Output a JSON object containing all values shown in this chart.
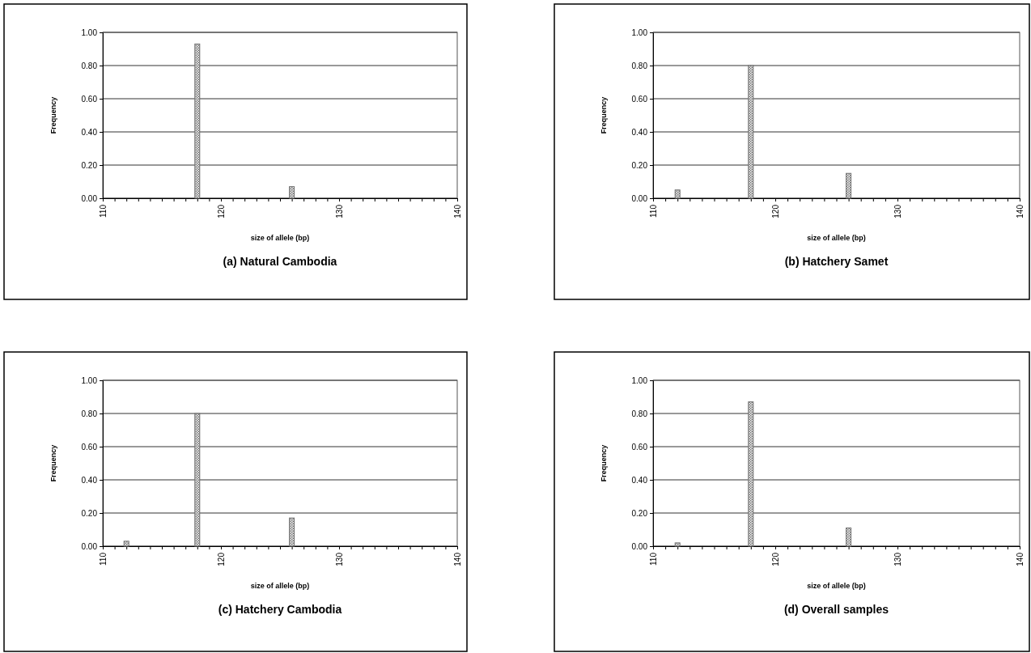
{
  "chart_data": [
    {
      "type": "bar",
      "title": "(a) Natural Cambodia",
      "xlabel": "size of allele (bp)",
      "ylabel": "Frequency",
      "x": [
        118,
        126
      ],
      "values": [
        0.93,
        0.07
      ],
      "color": "#6e6e6e",
      "xlim": [
        110,
        140
      ],
      "ylim": [
        0,
        1
      ],
      "xticks": [
        110,
        {
          "value": 111,
          "label": null
        },
        {
          "value": 112,
          "label": null
        },
        {
          "value": 113,
          "label": null
        },
        {
          "value": 114,
          "label": null
        },
        {
          "value": 115,
          "label": null
        },
        {
          "value": 116,
          "label": null
        },
        {
          "value": 117,
          "label": null
        },
        {
          "value": 118,
          "label": null
        },
        {
          "value": 119,
          "label": null
        },
        120,
        {
          "value": 121,
          "label": null
        },
        {
          "value": 122,
          "label": null
        },
        {
          "value": 123,
          "label": null
        },
        {
          "value": 124,
          "label": null
        },
        {
          "value": 125,
          "label": null
        },
        {
          "value": 126,
          "label": null
        },
        {
          "value": 127,
          "label": null
        },
        {
          "value": 128,
          "label": null
        },
        {
          "value": 129,
          "label": null
        },
        130,
        {
          "value": 131,
          "label": null
        },
        {
          "value": 132,
          "label": null
        },
        {
          "value": 133,
          "label": null
        },
        {
          "value": 134,
          "label": null
        },
        {
          "value": 135,
          "label": null
        },
        {
          "value": 136,
          "label": null
        },
        {
          "value": 137,
          "label": null
        },
        {
          "value": 138,
          "label": null
        },
        {
          "value": 139,
          "label": null
        },
        140
      ],
      "yticks": [
        {
          "value": 0,
          "label": "0.00"
        },
        {
          "value": 0.2,
          "label": "0.20"
        },
        {
          "value": 0.4,
          "label": "0.40"
        },
        {
          "value": 0.6,
          "label": "0.60"
        },
        {
          "value": 0.8,
          "label": "0.80"
        },
        {
          "value": 1,
          "label": "1.00"
        }
      ],
      "grid": "y"
    },
    {
      "type": "bar",
      "title": "(b) Hatchery Samet",
      "xlabel": "size of allele (bp)",
      "ylabel": "Frequency",
      "x": [
        112,
        118,
        126
      ],
      "values": [
        0.05,
        0.8,
        0.15
      ],
      "color": "#6e6e6e",
      "xlim": [
        110,
        140
      ],
      "ylim": [
        0,
        1
      ],
      "xticks": [
        110,
        {
          "value": 111,
          "label": null
        },
        {
          "value": 112,
          "label": null
        },
        {
          "value": 113,
          "label": null
        },
        {
          "value": 114,
          "label": null
        },
        {
          "value": 115,
          "label": null
        },
        {
          "value": 116,
          "label": null
        },
        {
          "value": 117,
          "label": null
        },
        {
          "value": 118,
          "label": null
        },
        {
          "value": 119,
          "label": null
        },
        120,
        {
          "value": 121,
          "label": null
        },
        {
          "value": 122,
          "label": null
        },
        {
          "value": 123,
          "label": null
        },
        {
          "value": 124,
          "label": null
        },
        {
          "value": 125,
          "label": null
        },
        {
          "value": 126,
          "label": null
        },
        {
          "value": 127,
          "label": null
        },
        {
          "value": 128,
          "label": null
        },
        {
          "value": 129,
          "label": null
        },
        130,
        {
          "value": 131,
          "label": null
        },
        {
          "value": 132,
          "label": null
        },
        {
          "value": 133,
          "label": null
        },
        {
          "value": 134,
          "label": null
        },
        {
          "value": 135,
          "label": null
        },
        {
          "value": 136,
          "label": null
        },
        {
          "value": 137,
          "label": null
        },
        {
          "value": 138,
          "label": null
        },
        {
          "value": 139,
          "label": null
        },
        140
      ],
      "yticks": [
        {
          "value": 0,
          "label": "0.00"
        },
        {
          "value": 0.2,
          "label": "0.20"
        },
        {
          "value": 0.4,
          "label": "0.40"
        },
        {
          "value": 0.6,
          "label": "0.60"
        },
        {
          "value": 0.8,
          "label": "0.80"
        },
        {
          "value": 1,
          "label": "1.00"
        }
      ],
      "grid": "y"
    },
    {
      "type": "bar",
      "title": "(c) Hatchery Cambodia",
      "xlabel": "size of allele (bp)",
      "ylabel": "Frequency",
      "x": [
        112,
        118,
        126
      ],
      "values": [
        0.03,
        0.8,
        0.17
      ],
      "color": "#6e6e6e",
      "xlim": [
        110,
        140
      ],
      "ylim": [
        0,
        1
      ],
      "xticks": [
        110,
        {
          "value": 111,
          "label": null
        },
        {
          "value": 112,
          "label": null
        },
        {
          "value": 113,
          "label": null
        },
        {
          "value": 114,
          "label": null
        },
        {
          "value": 115,
          "label": null
        },
        {
          "value": 116,
          "label": null
        },
        {
          "value": 117,
          "label": null
        },
        {
          "value": 118,
          "label": null
        },
        {
          "value": 119,
          "label": null
        },
        120,
        {
          "value": 121,
          "label": null
        },
        {
          "value": 122,
          "label": null
        },
        {
          "value": 123,
          "label": null
        },
        {
          "value": 124,
          "label": null
        },
        {
          "value": 125,
          "label": null
        },
        {
          "value": 126,
          "label": null
        },
        {
          "value": 127,
          "label": null
        },
        {
          "value": 128,
          "label": null
        },
        {
          "value": 129,
          "label": null
        },
        130,
        {
          "value": 131,
          "label": null
        },
        {
          "value": 132,
          "label": null
        },
        {
          "value": 133,
          "label": null
        },
        {
          "value": 134,
          "label": null
        },
        {
          "value": 135,
          "label": null
        },
        {
          "value": 136,
          "label": null
        },
        {
          "value": 137,
          "label": null
        },
        {
          "value": 138,
          "label": null
        },
        {
          "value": 139,
          "label": null
        },
        140
      ],
      "yticks": [
        {
          "value": 0,
          "label": "0.00"
        },
        {
          "value": 0.2,
          "label": "0.20"
        },
        {
          "value": 0.4,
          "label": "0.40"
        },
        {
          "value": 0.6,
          "label": "0.60"
        },
        {
          "value": 0.8,
          "label": "0.80"
        },
        {
          "value": 1,
          "label": "1.00"
        }
      ],
      "grid": "y"
    },
    {
      "type": "bar",
      "title": "(d) Overall samples",
      "xlabel": "size of allele (bp)",
      "ylabel": "Frequency",
      "x": [
        112,
        118,
        126
      ],
      "values": [
        0.02,
        0.87,
        0.11
      ],
      "color": "#6e6e6e",
      "xlim": [
        110,
        140
      ],
      "ylim": [
        0,
        1
      ],
      "xticks": [
        110,
        {
          "value": 111,
          "label": null
        },
        {
          "value": 112,
          "label": null
        },
        {
          "value": 113,
          "label": null
        },
        {
          "value": 114,
          "label": null
        },
        {
          "value": 115,
          "label": null
        },
        {
          "value": 116,
          "label": null
        },
        {
          "value": 117,
          "label": null
        },
        {
          "value": 118,
          "label": null
        },
        {
          "value": 119,
          "label": null
        },
        120,
        {
          "value": 121,
          "label": null
        },
        {
          "value": 122,
          "label": null
        },
        {
          "value": 123,
          "label": null
        },
        {
          "value": 124,
          "label": null
        },
        {
          "value": 125,
          "label": null
        },
        {
          "value": 126,
          "label": null
        },
        {
          "value": 127,
          "label": null
        },
        {
          "value": 128,
          "label": null
        },
        {
          "value": 129,
          "label": null
        },
        130,
        {
          "value": 131,
          "label": null
        },
        {
          "value": 132,
          "label": null
        },
        {
          "value": 133,
          "label": null
        },
        {
          "value": 134,
          "label": null
        },
        {
          "value": 135,
          "label": null
        },
        {
          "value": 136,
          "label": null
        },
        {
          "value": 137,
          "label": null
        },
        {
          "value": 138,
          "label": null
        },
        {
          "value": 139,
          "label": null
        },
        140
      ],
      "yticks": [
        {
          "value": 0,
          "label": "0.00"
        },
        {
          "value": 0.2,
          "label": "0.20"
        },
        {
          "value": 0.4,
          "label": "0.40"
        },
        {
          "value": 0.6,
          "label": "0.60"
        },
        {
          "value": 0.8,
          "label": "0.80"
        },
        {
          "value": 1,
          "label": "1.00"
        }
      ],
      "grid": "y"
    }
  ]
}
